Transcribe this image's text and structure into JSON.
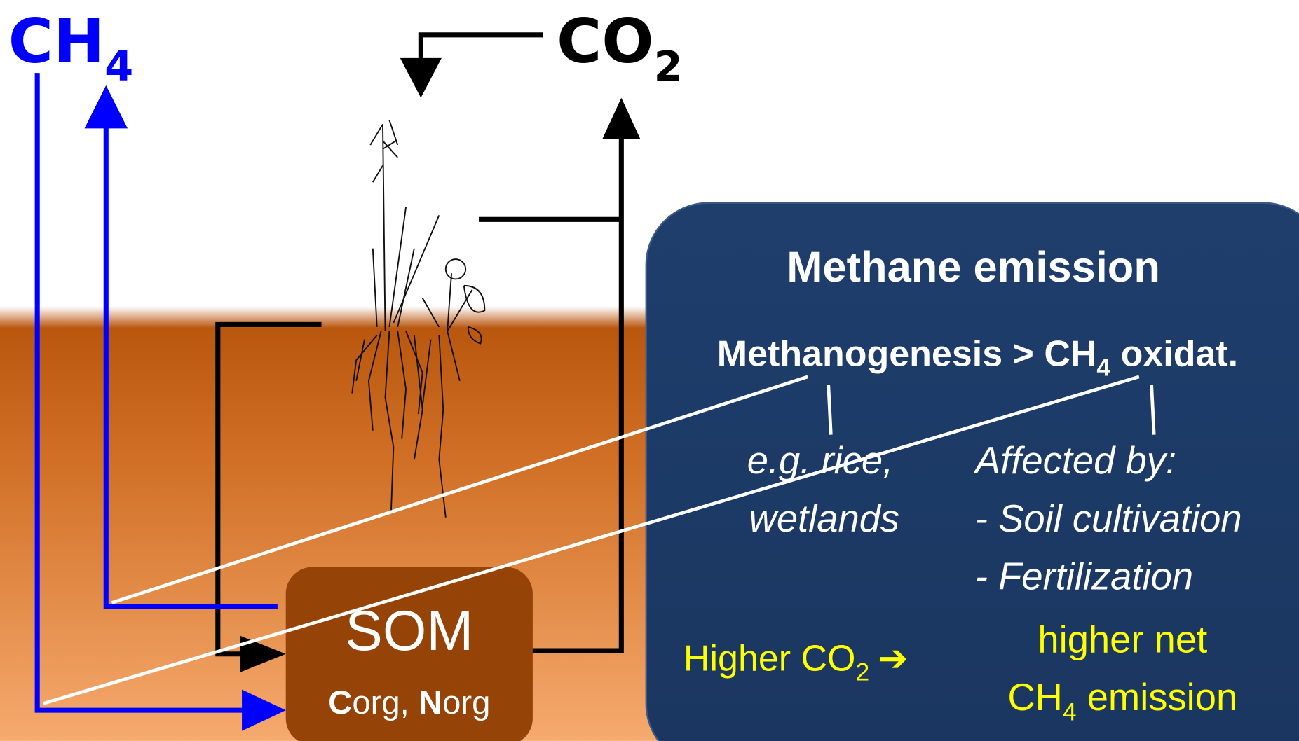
{
  "labels": {
    "ch4": {
      "text": "CH",
      "sub": "4"
    },
    "co2": {
      "text": "CO",
      "sub": "2"
    }
  },
  "som": {
    "title": "SOM",
    "c_bold": "C",
    "c_rest": "org, ",
    "n_bold": "N",
    "n_rest": "org"
  },
  "box": {
    "title": "Methane emission",
    "line": {
      "a": "Methanogenesis > CH",
      "sub": "4",
      "b": " oxidat."
    },
    "left": [
      "e.g. rice,",
      "wetlands"
    ],
    "right": [
      "Affected by:",
      "- Soil cultivation",
      "- Fertilization"
    ],
    "higher": {
      "a": "Higher CO",
      "sub": "2",
      "arrow": "➔"
    },
    "result": {
      "line1": "higher net",
      "a": "CH",
      "sub": "4",
      "b": " emission"
    }
  }
}
